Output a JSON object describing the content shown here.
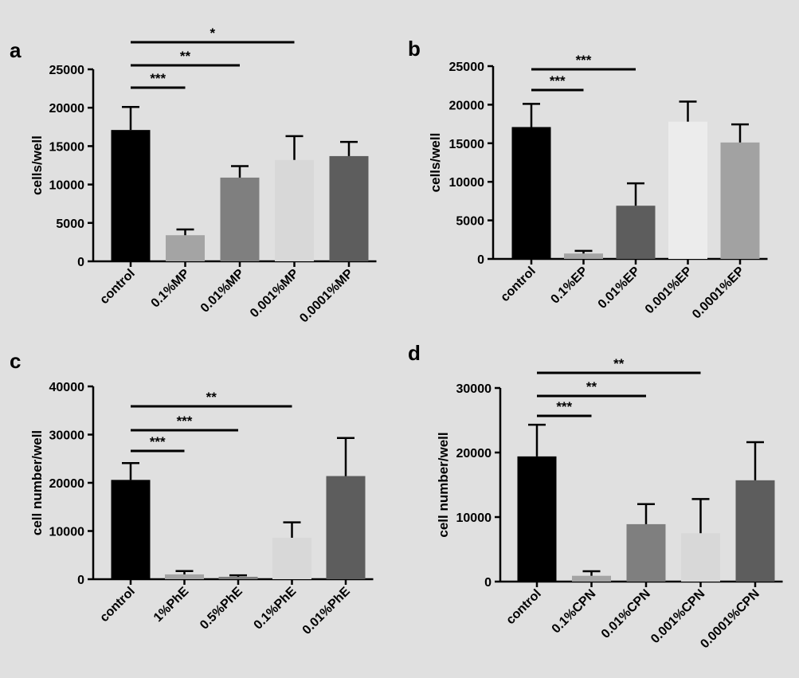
{
  "background": "#e0e0e0",
  "chart_data": [
    {
      "panel": "a",
      "type": "bar",
      "ylabel": "cells/well",
      "ylim": [
        0,
        25000
      ],
      "yticks": [
        0,
        5000,
        10000,
        15000,
        20000,
        25000
      ],
      "categories": [
        "control",
        "0.1%MP",
        "0.01%MP",
        "0.001%MP",
        "0.0001%MP"
      ],
      "values": [
        17100,
        3400,
        10900,
        13200,
        13700
      ],
      "errors": [
        3000,
        750,
        1500,
        3100,
        1850
      ],
      "colors": [
        "#000000",
        "#a4a4a4",
        "#7f7f7f",
        "#d8d8d8",
        "#5d5d5d"
      ],
      "significance": [
        {
          "from": 0,
          "to": 1,
          "label": "***"
        },
        {
          "from": 0,
          "to": 2,
          "label": "**"
        },
        {
          "from": 0,
          "to": 3,
          "label": "*"
        }
      ]
    },
    {
      "panel": "b",
      "type": "bar",
      "ylabel": "cells/well",
      "ylim": [
        0,
        25000
      ],
      "yticks": [
        0,
        5000,
        10000,
        15000,
        20000,
        25000
      ],
      "categories": [
        "control",
        "0.1%EP",
        "0.01%EP",
        "0.001%EP",
        "0.0001%EP"
      ],
      "values": [
        17100,
        700,
        6900,
        17800,
        15100
      ],
      "errors": [
        3000,
        350,
        2900,
        2600,
        2350
      ],
      "colors": [
        "#000000",
        "#a4a4a4",
        "#5d5d5d",
        "#ececec",
        "#a2a2a2"
      ],
      "significance": [
        {
          "from": 0,
          "to": 1,
          "label": "***"
        },
        {
          "from": 0,
          "to": 2,
          "label": "***"
        }
      ]
    },
    {
      "panel": "c",
      "type": "bar",
      "ylabel": "cell number/well",
      "ylim": [
        0,
        40000
      ],
      "yticks": [
        0,
        10000,
        20000,
        30000,
        40000
      ],
      "categories": [
        "control",
        "1%PhE",
        "0.5%PhE",
        "0.1%PhE",
        "0.01%PhE"
      ],
      "values": [
        20600,
        1000,
        500,
        8600,
        21400
      ],
      "errors": [
        3500,
        700,
        300,
        3200,
        7900
      ],
      "colors": [
        "#000000",
        "#a4a4a4",
        "#7f7f7f",
        "#d8d8d8",
        "#5d5d5d"
      ],
      "significance": [
        {
          "from": 0,
          "to": 1,
          "label": "***"
        },
        {
          "from": 0,
          "to": 2,
          "label": "***"
        },
        {
          "from": 0,
          "to": 3,
          "label": "**"
        }
      ]
    },
    {
      "panel": "d",
      "type": "bar",
      "ylabel": "cell number/well",
      "ylim": [
        0,
        30000
      ],
      "yticks": [
        0,
        10000,
        20000,
        30000
      ],
      "categories": [
        "control",
        "0.1%CPN",
        "0.01%CPN",
        "0.001%CPN",
        "0.0001%CPN"
      ],
      "values": [
        19400,
        900,
        8900,
        7500,
        15700
      ],
      "errors": [
        4900,
        700,
        3100,
        5300,
        5900
      ],
      "colors": [
        "#000000",
        "#a4a4a4",
        "#7f7f7f",
        "#d8d8d8",
        "#5d5d5d"
      ],
      "significance": [
        {
          "from": 0,
          "to": 1,
          "label": "***"
        },
        {
          "from": 0,
          "to": 2,
          "label": "**"
        },
        {
          "from": 0,
          "to": 3,
          "label": "**"
        }
      ]
    }
  ]
}
